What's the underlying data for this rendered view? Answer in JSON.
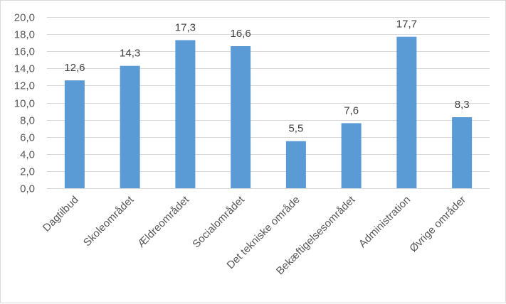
{
  "chart_data": {
    "type": "bar",
    "title": "",
    "xlabel": "",
    "ylabel": "",
    "categories": [
      "Dagtilbud",
      "Skoleområdet",
      "Ældreområdet",
      "Socialområdet",
      "Det tekniske område",
      "Bekæftigelsesområdet",
      "Administration",
      "Øvrige områder"
    ],
    "values": [
      12.6,
      14.3,
      17.3,
      16.6,
      5.5,
      7.6,
      17.7,
      8.3
    ],
    "value_labels": [
      "12,6",
      "14,3",
      "17,3",
      "16,6",
      "5,5",
      "7,6",
      "17,7",
      "8,3"
    ],
    "y_ticks": [
      0,
      2,
      4,
      6,
      8,
      10,
      12,
      14,
      16,
      18,
      20
    ],
    "y_tick_labels": [
      "0,0",
      "2,0",
      "4,0",
      "6,0",
      "8,0",
      "10,0",
      "12,0",
      "14,0",
      "16,0",
      "18,0",
      "20,0"
    ],
    "ylim": [
      0,
      20
    ],
    "grid": true,
    "legend": "none",
    "colors": {
      "bar": "#5b9bd5",
      "grid": "#d9d9d9",
      "axis_text": "#595959"
    }
  }
}
